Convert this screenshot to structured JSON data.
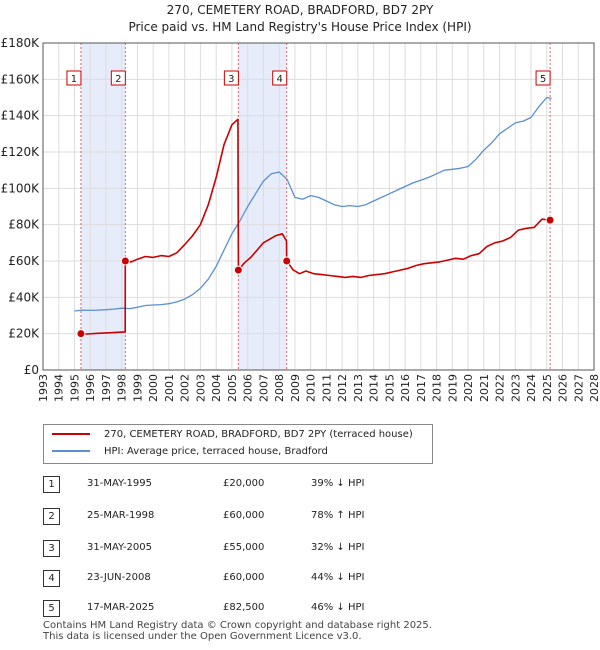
{
  "chart_data": {
    "type": "line",
    "title": "270, CEMETERY ROAD, BRADFORD, BD7 2PY",
    "subtitle": "Price paid vs. HM Land Registry's House Price Index (HPI)",
    "xlim": [
      1993,
      2028
    ],
    "ylim": [
      0,
      180000
    ],
    "y_ticks": [
      0,
      20000,
      40000,
      60000,
      80000,
      100000,
      120000,
      140000,
      160000,
      180000
    ],
    "y_tick_labels": [
      "£0",
      "£20K",
      "£40K",
      "£60K",
      "£80K",
      "£100K",
      "£120K",
      "£140K",
      "£160K",
      "£180K"
    ],
    "x_ticks": [
      1993,
      1994,
      1995,
      1996,
      1997,
      1998,
      1999,
      2000,
      2001,
      2002,
      2003,
      2004,
      2005,
      2006,
      2007,
      2008,
      2009,
      2010,
      2011,
      2012,
      2013,
      2014,
      2015,
      2016,
      2017,
      2018,
      2019,
      2020,
      2021,
      2022,
      2023,
      2024,
      2025,
      2026,
      2027,
      2028
    ],
    "x_tick_labels": [
      "1993",
      "1994",
      "1995",
      "1996",
      "1997",
      "1998",
      "1999",
      "2000",
      "2001",
      "2002",
      "2003",
      "2004",
      "2005",
      "2006",
      "2007",
      "2008",
      "2009",
      "2010",
      "2011",
      "2012",
      "2013",
      "2014",
      "2015",
      "2016",
      "2017",
      "2018",
      "2019",
      "2020",
      "2021",
      "2022",
      "2023",
      "2024",
      "2025",
      "2026",
      "2027",
      "2028"
    ],
    "grid": true,
    "shaded_periods": [
      [
        1995.41,
        1998.23
      ],
      [
        2005.41,
        2008.48
      ]
    ],
    "series": [
      {
        "name": "270, CEMETERY ROAD, BRADFORD, BD7 2PY (terraced house)",
        "color": "#cc0000",
        "x": [
          1995.41,
          1995.8,
          1996.5,
          1997.2,
          1997.9,
          1998.22,
          1998.23,
          1998.6,
          1999.0,
          1999.5,
          2000.0,
          2000.5,
          2001.0,
          2001.5,
          2002.0,
          2002.5,
          2003.0,
          2003.5,
          2004.0,
          2004.5,
          2005.0,
          2005.38,
          2005.41,
          2005.8,
          2006.2,
          2006.6,
          2007.0,
          2007.4,
          2007.8,
          2008.2,
          2008.47,
          2008.48,
          2008.9,
          2009.3,
          2009.7,
          2010.2,
          2010.7,
          2011.2,
          2011.7,
          2012.2,
          2012.7,
          2013.2,
          2013.7,
          2014.2,
          2014.7,
          2015.2,
          2015.7,
          2016.2,
          2016.7,
          2017.2,
          2017.7,
          2018.2,
          2018.7,
          2019.2,
          2019.7,
          2020.2,
          2020.7,
          2021.2,
          2021.7,
          2022.2,
          2022.7,
          2023.2,
          2023.7,
          2024.2,
          2024.7,
          2025.21
        ],
        "values": [
          20000,
          19800,
          20200,
          20500,
          20800,
          21000,
          60000,
          59500,
          61000,
          62500,
          62000,
          63000,
          62500,
          64500,
          69000,
          74000,
          80000,
          91000,
          106000,
          124000,
          135000,
          138000,
          55000,
          59000,
          62000,
          66000,
          70000,
          72000,
          74000,
          75000,
          71000,
          60000,
          55000,
          53000,
          54500,
          53000,
          52500,
          52000,
          51500,
          51000,
          51500,
          51000,
          52000,
          52500,
          53000,
          54000,
          55000,
          56000,
          57500,
          58500,
          59000,
          59500,
          60500,
          61500,
          61000,
          63000,
          64000,
          68000,
          70000,
          71000,
          73000,
          77000,
          78000,
          78500,
          83000,
          82500
        ]
      },
      {
        "name": "HPI: Average price, terraced house, Bradford",
        "color": "#5b8fd1",
        "x": [
          1995.0,
          1995.5,
          1996.0,
          1996.5,
          1997.0,
          1997.5,
          1998.0,
          1998.5,
          1999.0,
          1999.5,
          2000.0,
          2000.5,
          2001.0,
          2001.5,
          2002.0,
          2002.5,
          2003.0,
          2003.5,
          2004.0,
          2004.5,
          2005.0,
          2005.5,
          2006.0,
          2006.5,
          2007.0,
          2007.5,
          2008.0,
          2008.5,
          2009.0,
          2009.5,
          2010.0,
          2010.5,
          2011.0,
          2011.5,
          2012.0,
          2012.5,
          2013.0,
          2013.5,
          2014.0,
          2014.5,
          2015.0,
          2015.5,
          2016.0,
          2016.5,
          2017.0,
          2017.5,
          2018.0,
          2018.5,
          2019.0,
          2019.5,
          2020.0,
          2020.5,
          2021.0,
          2021.5,
          2022.0,
          2022.5,
          2023.0,
          2023.5,
          2024.0,
          2024.5,
          2025.0,
          2025.3
        ],
        "values": [
          32500,
          33000,
          32800,
          33000,
          33200,
          33500,
          34000,
          33800,
          34500,
          35500,
          35800,
          36000,
          36500,
          37500,
          39000,
          41500,
          45000,
          50000,
          57000,
          66000,
          75000,
          82000,
          90000,
          97000,
          104000,
          108000,
          109000,
          105000,
          95000,
          94000,
          96000,
          95000,
          93000,
          91000,
          90000,
          90500,
          90000,
          91000,
          93000,
          95000,
          97000,
          99000,
          101000,
          103000,
          104500,
          106000,
          108000,
          110000,
          110500,
          111000,
          112000,
          116000,
          121000,
          125000,
          130000,
          133000,
          136000,
          137000,
          139000,
          145000,
          150000,
          149500
        ]
      }
    ],
    "annotations": [
      {
        "label": "1",
        "x": 1995.41,
        "y": 20000
      },
      {
        "label": "2",
        "x": 1998.23,
        "y": 60000
      },
      {
        "label": "3",
        "x": 2005.41,
        "y": 55000
      },
      {
        "label": "4",
        "x": 2008.48,
        "y": 60000
      },
      {
        "label": "5",
        "x": 2025.21,
        "y": 82500
      }
    ]
  },
  "legend": [
    {
      "label": "270, CEMETERY ROAD, BRADFORD, BD7 2PY (terraced house)",
      "color": "#cc0000"
    },
    {
      "label": "HPI: Average price, terraced house, Bradford",
      "color": "#5b8fd1"
    }
  ],
  "sales": [
    {
      "num": "1",
      "date": "31-MAY-1995",
      "price": "£20,000",
      "hpi": "39% ↓ HPI"
    },
    {
      "num": "2",
      "date": "25-MAR-1998",
      "price": "£60,000",
      "hpi": "78% ↑ HPI"
    },
    {
      "num": "3",
      "date": "31-MAY-2005",
      "price": "£55,000",
      "hpi": "32% ↓ HPI"
    },
    {
      "num": "4",
      "date": "23-JUN-2008",
      "price": "£60,000",
      "hpi": "44% ↓ HPI"
    },
    {
      "num": "5",
      "date": "17-MAR-2025",
      "price": "£82,500",
      "hpi": "46% ↓ HPI"
    }
  ],
  "footer": {
    "line1": "Contains HM Land Registry data © Crown copyright and database right 2025.",
    "line2": "This data is licensed under the Open Government Licence v3.0."
  }
}
